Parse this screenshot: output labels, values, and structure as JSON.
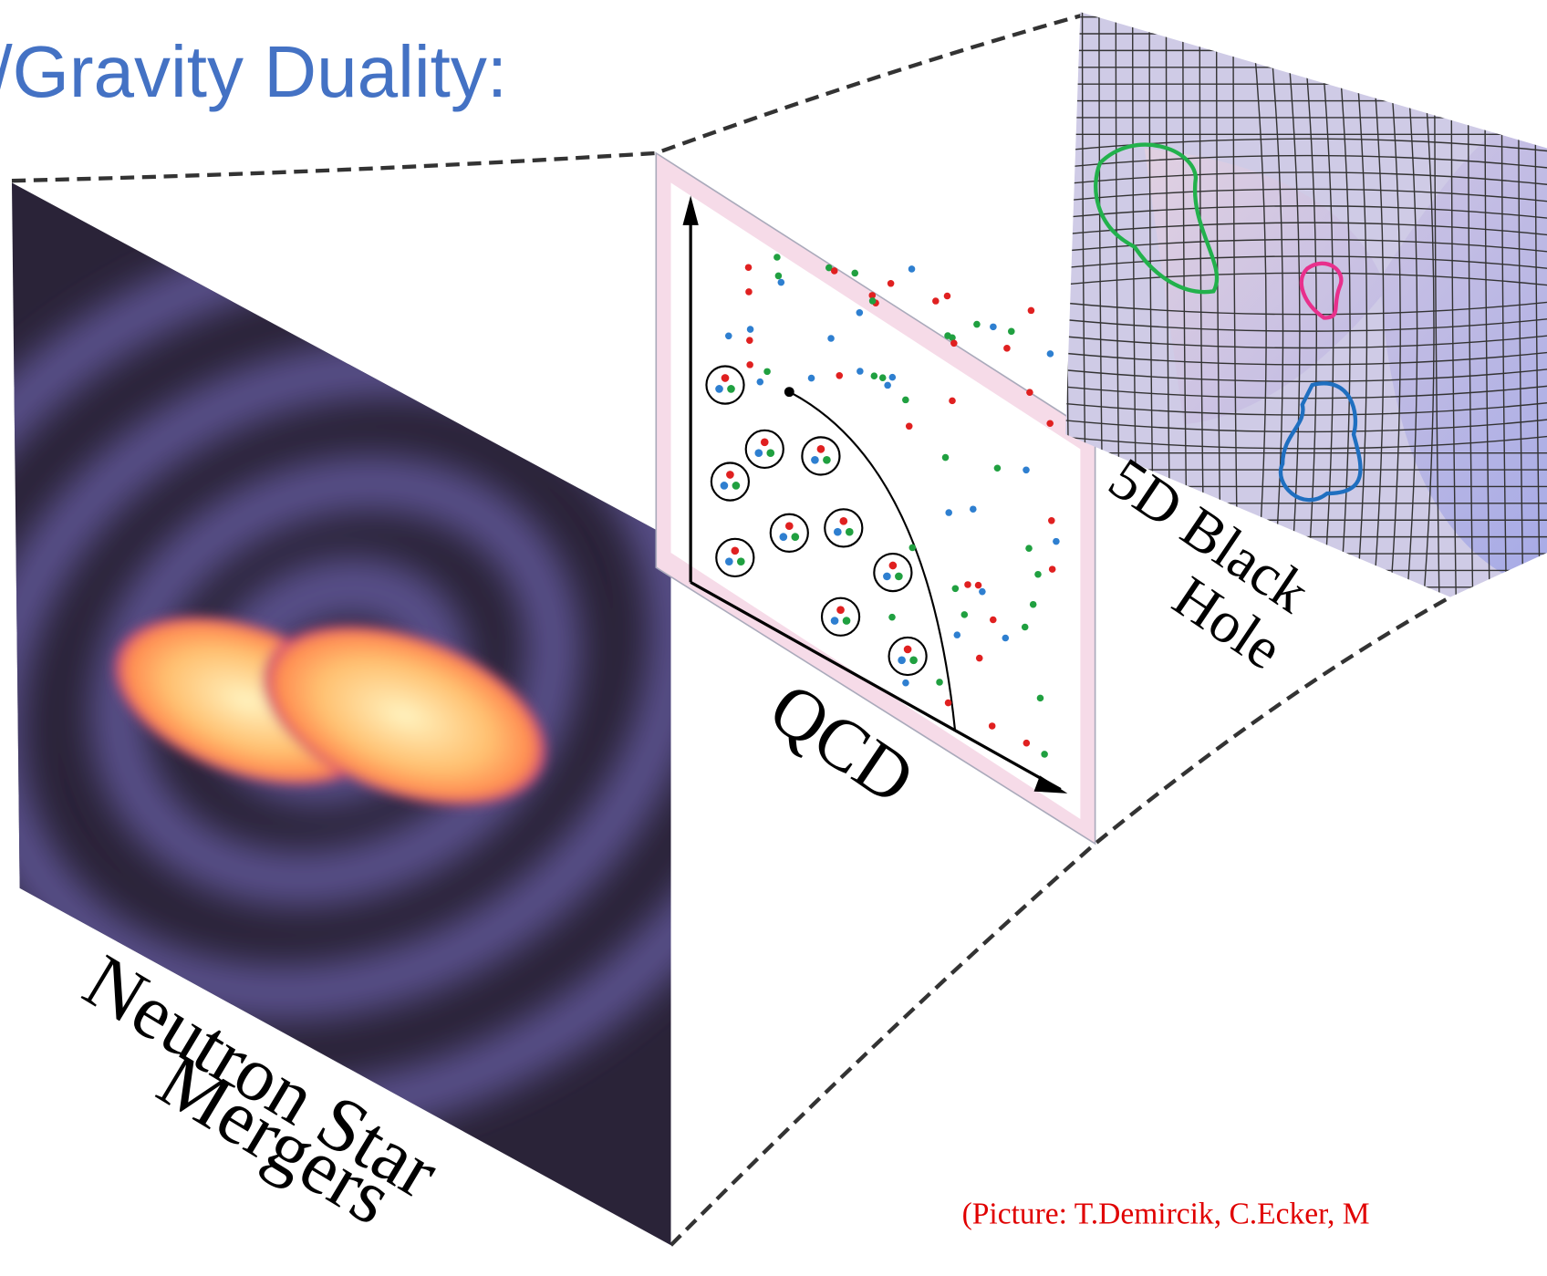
{
  "title": "/Gravity Duality:",
  "labels": {
    "neutron_star": "Neutron Star",
    "mergers": "Mergers",
    "qcd": "QCD",
    "black_hole_1": "5D Black",
    "black_hole_2": "Hole"
  },
  "caption": "(Picture: T.Demircik, C.Ecker, M"
}
